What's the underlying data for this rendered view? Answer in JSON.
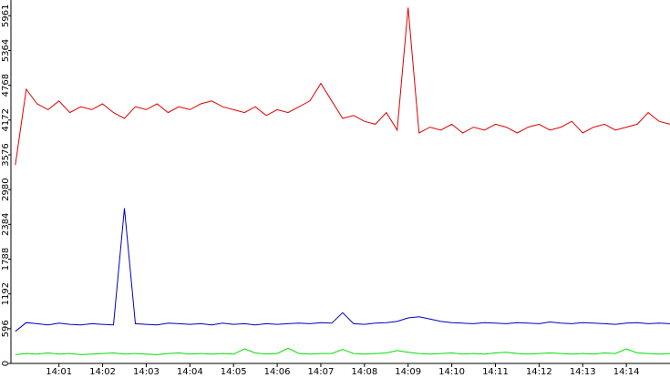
{
  "chart_data": {
    "type": "line",
    "x": [
      840,
      840.25,
      840.5,
      840.75,
      841,
      841.25,
      841.5,
      841.75,
      842,
      842.25,
      842.5,
      842.75,
      843,
      843.25,
      843.5,
      843.75,
      844,
      844.25,
      844.5,
      844.75,
      845,
      845.25,
      845.5,
      845.75,
      846,
      846.25,
      846.5,
      846.75,
      847,
      847.25,
      847.5,
      847.75,
      848,
      848.25,
      848.5,
      848.75,
      849,
      849.25,
      849.5,
      849.75,
      850,
      850.25,
      850.5,
      850.75,
      851,
      851.25,
      851.5,
      851.75,
      852,
      852.25,
      852.5,
      852.75,
      853,
      853.25,
      853.5,
      853.75,
      854,
      854.25,
      854.5,
      854.75,
      855
    ],
    "series": [
      {
        "color": "#e00000",
        "values": [
          3400,
          4700,
          4450,
          4350,
          4500,
          4300,
          4400,
          4350,
          4450,
          4300,
          4200,
          4400,
          4350,
          4450,
          4300,
          4400,
          4350,
          4450,
          4500,
          4400,
          4350,
          4300,
          4400,
          4250,
          4350,
          4300,
          4400,
          4500,
          4800,
          4500,
          4200,
          4250,
          4150,
          4100,
          4300,
          4000,
          6100,
          3950,
          4050,
          4000,
          4100,
          3950,
          4050,
          4000,
          4100,
          4050,
          3950,
          4050,
          4100,
          4000,
          4050,
          4150,
          3950,
          4050,
          4100,
          4000,
          4050,
          4100,
          4300,
          4150,
          4100
        ]
      },
      {
        "color": "#0000c0",
        "values": [
          550,
          700,
          680,
          660,
          690,
          670,
          660,
          680,
          670,
          660,
          2660,
          680,
          670,
          660,
          690,
          680,
          670,
          680,
          660,
          690,
          670,
          680,
          660,
          680,
          670,
          680,
          690,
          680,
          700,
          690,
          870,
          680,
          670,
          690,
          700,
          720,
          780,
          800,
          760,
          720,
          700,
          690,
          680,
          700,
          690,
          680,
          700,
          690,
          680,
          710,
          690,
          680,
          700,
          690,
          680,
          670,
          690,
          700,
          680,
          690,
          680
        ]
      },
      {
        "color": "#00e000",
        "values": [
          150,
          170,
          160,
          180,
          160,
          170,
          150,
          160,
          170,
          180,
          160,
          170,
          160,
          150,
          170,
          180,
          160,
          170,
          160,
          170,
          160,
          250,
          180,
          160,
          170,
          260,
          170,
          160,
          170,
          170,
          240,
          170,
          160,
          170,
          180,
          220,
          190,
          170,
          160,
          170,
          180,
          160,
          170,
          160,
          180,
          190,
          170,
          160,
          170,
          180,
          170,
          160,
          170,
          160,
          180,
          170,
          250,
          180,
          170,
          160,
          170
        ]
      }
    ],
    "xlim": [
      839.9,
      855
    ],
    "xticks": [
      {
        "value": 841,
        "label": "14:01"
      },
      {
        "value": 842,
        "label": "14:02"
      },
      {
        "value": 843,
        "label": "14:03"
      },
      {
        "value": 844,
        "label": "14:04"
      },
      {
        "value": 845,
        "label": "14:05"
      },
      {
        "value": 846,
        "label": "14:06"
      },
      {
        "value": 847,
        "label": "14:07"
      },
      {
        "value": 848,
        "label": "14:08"
      },
      {
        "value": 849,
        "label": "14:09"
      },
      {
        "value": 850,
        "label": "14:10"
      },
      {
        "value": 851,
        "label": "14:11"
      },
      {
        "value": 852,
        "label": "14:12"
      },
      {
        "value": 853,
        "label": "14:13"
      },
      {
        "value": 854,
        "label": "14:14"
      }
    ],
    "ylim": [
      0,
      6230
    ],
    "yticks": [
      0,
      596,
      1192,
      1788,
      2384,
      2980,
      3576,
      4172,
      4768,
      5364,
      5961
    ]
  }
}
